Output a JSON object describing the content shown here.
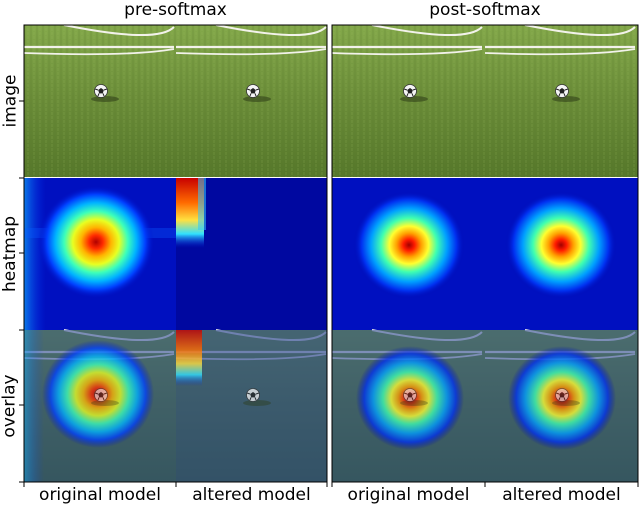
{
  "group_titles": [
    "pre-softmax",
    "post-softmax"
  ],
  "row_labels": [
    "image",
    "heatmap",
    "overlay"
  ],
  "col_labels": [
    "original model",
    "altered model",
    "original model",
    "altered model"
  ],
  "panels": [
    {
      "group": "pre-softmax",
      "model": "original model",
      "heatmap": "centered-blob"
    },
    {
      "group": "pre-softmax",
      "model": "altered model",
      "heatmap": "top-left-corner"
    },
    {
      "group": "post-softmax",
      "model": "original model",
      "heatmap": "centered-peak"
    },
    {
      "group": "post-softmax",
      "model": "altered model",
      "heatmap": "centered-peak"
    }
  ],
  "colors": {
    "grass": "#6e8f3c",
    "heatmap_background": "#00008f",
    "heatmap_peak": "#d40000",
    "overlay_tint": "#1e3c8c"
  }
}
